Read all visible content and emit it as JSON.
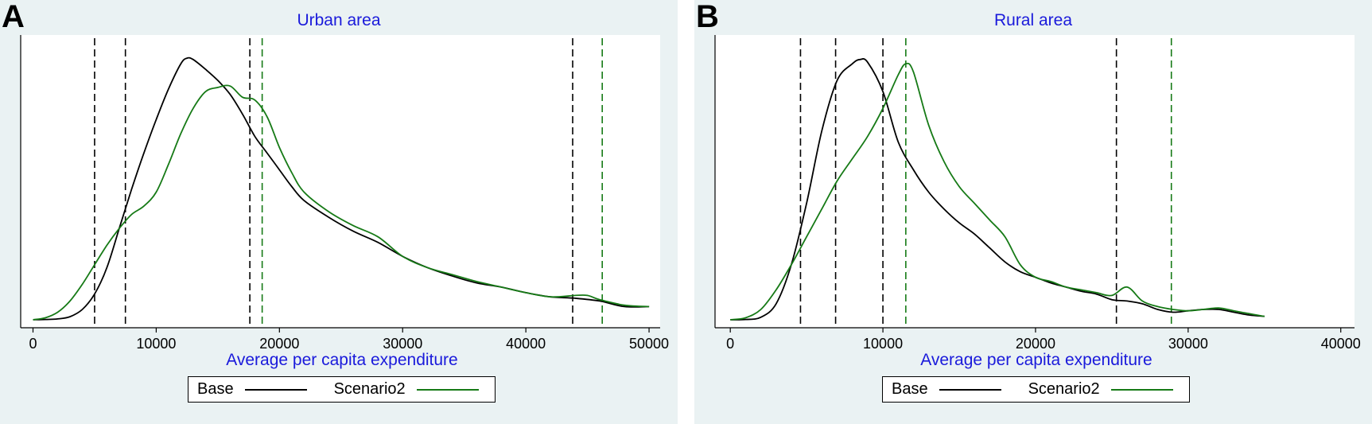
{
  "chart_data": [
    {
      "type": "line",
      "panel_label": "A",
      "title": "Urban area",
      "xlabel": "Average per capita expenditure",
      "ylabel": "",
      "xlim": [
        -1000,
        50900
      ],
      "ylim": [
        0,
        1
      ],
      "x_ticks": [
        0,
        10000,
        20000,
        30000,
        40000,
        50000
      ],
      "x_tick_labels": [
        "0",
        "10000",
        "20000",
        "30000",
        "40000",
        "50000"
      ],
      "y_ticks_shown": false,
      "grid": false,
      "legend_position": "bottom",
      "series": [
        {
          "name": "Base",
          "color": "#000000",
          "x": [
            0,
            1000,
            2000,
            3000,
            4000,
            5000,
            6000,
            7000,
            8000,
            9000,
            10000,
            11000,
            12000,
            12500,
            13000,
            14000,
            15000,
            16000,
            17000,
            18000,
            19000,
            20000,
            21000,
            22000,
            24000,
            26000,
            28000,
            30000,
            32000,
            34000,
            36000,
            38000,
            40000,
            42000,
            44000,
            46000,
            48000,
            50000
          ],
          "y": [
            0.003,
            0.004,
            0.006,
            0.014,
            0.04,
            0.095,
            0.19,
            0.33,
            0.47,
            0.6,
            0.72,
            0.83,
            0.92,
            0.94,
            0.935,
            0.9,
            0.86,
            0.81,
            0.74,
            0.66,
            0.6,
            0.54,
            0.48,
            0.43,
            0.37,
            0.32,
            0.28,
            0.23,
            0.19,
            0.16,
            0.135,
            0.12,
            0.1,
            0.085,
            0.08,
            0.07,
            0.05,
            0.05
          ]
        },
        {
          "name": "Scenario2",
          "color": "#167a16",
          "x": [
            0,
            1000,
            2000,
            3000,
            4000,
            5000,
            6000,
            7000,
            8000,
            9000,
            10000,
            11000,
            12000,
            13000,
            14000,
            15000,
            16000,
            17000,
            18000,
            19000,
            20000,
            21000,
            22000,
            24000,
            26000,
            28000,
            30000,
            32000,
            34000,
            36000,
            38000,
            40000,
            42000,
            44000,
            45000,
            46000,
            48000,
            50000
          ],
          "y": [
            0.003,
            0.01,
            0.03,
            0.07,
            0.13,
            0.2,
            0.27,
            0.33,
            0.38,
            0.41,
            0.46,
            0.56,
            0.67,
            0.76,
            0.82,
            0.835,
            0.84,
            0.8,
            0.79,
            0.73,
            0.62,
            0.53,
            0.46,
            0.39,
            0.34,
            0.3,
            0.23,
            0.19,
            0.165,
            0.14,
            0.12,
            0.1,
            0.085,
            0.09,
            0.09,
            0.075,
            0.055,
            0.05
          ]
        }
      ],
      "vlines": [
        {
          "x": 5000,
          "series": "Base",
          "color": "#000000"
        },
        {
          "x": 7500,
          "series": "Base",
          "color": "#000000"
        },
        {
          "x": 17600,
          "series": "Base",
          "color": "#000000"
        },
        {
          "x": 18600,
          "series": "Scenario2",
          "color": "#167a16"
        },
        {
          "x": 43800,
          "series": "Base",
          "color": "#000000"
        },
        {
          "x": 46200,
          "series": "Scenario2",
          "color": "#167a16"
        }
      ]
    },
    {
      "type": "line",
      "panel_label": "B",
      "title": "Rural area",
      "xlabel": "Average per capita expenditure",
      "ylabel": "",
      "xlim": [
        -1000,
        40900
      ],
      "ylim": [
        0,
        1
      ],
      "x_ticks": [
        0,
        10000,
        20000,
        30000,
        40000
      ],
      "x_tick_labels": [
        "0",
        "10000",
        "20000",
        "30000",
        "40000"
      ],
      "y_ticks_shown": false,
      "grid": false,
      "legend_position": "bottom",
      "series": [
        {
          "name": "Base",
          "color": "#000000",
          "x": [
            0,
            1000,
            2000,
            3000,
            4000,
            5000,
            6000,
            7000,
            8000,
            8500,
            9000,
            10000,
            11000,
            12000,
            13000,
            14000,
            15000,
            16000,
            17000,
            18000,
            19000,
            20000,
            21000,
            22000,
            23000,
            24000,
            25000,
            26000,
            27000,
            28000,
            29000,
            30000,
            31000,
            32000,
            33000,
            34000,
            35000
          ],
          "y": [
            0.003,
            0.004,
            0.012,
            0.06,
            0.2,
            0.42,
            0.68,
            0.86,
            0.92,
            0.935,
            0.925,
            0.82,
            0.64,
            0.54,
            0.46,
            0.4,
            0.35,
            0.31,
            0.26,
            0.21,
            0.175,
            0.155,
            0.135,
            0.12,
            0.105,
            0.095,
            0.075,
            0.07,
            0.06,
            0.04,
            0.03,
            0.035,
            0.04,
            0.04,
            0.03,
            0.02,
            0.015
          ]
        },
        {
          "name": "Scenario2",
          "color": "#167a16",
          "x": [
            0,
            1000,
            2000,
            3000,
            4000,
            5000,
            6000,
            7000,
            8000,
            9000,
            10000,
            11000,
            11500,
            12000,
            13000,
            14000,
            15000,
            16000,
            17000,
            18000,
            19000,
            20000,
            21000,
            22000,
            23000,
            24000,
            25000,
            26000,
            27000,
            28000,
            29000,
            30000,
            31000,
            32000,
            33000,
            34000,
            35000
          ],
          "y": [
            0.003,
            0.01,
            0.04,
            0.11,
            0.2,
            0.3,
            0.4,
            0.5,
            0.58,
            0.66,
            0.76,
            0.88,
            0.92,
            0.89,
            0.7,
            0.57,
            0.48,
            0.42,
            0.36,
            0.3,
            0.2,
            0.155,
            0.14,
            0.12,
            0.11,
            0.1,
            0.09,
            0.12,
            0.07,
            0.05,
            0.04,
            0.035,
            0.04,
            0.045,
            0.035,
            0.025,
            0.015
          ]
        }
      ],
      "vlines": [
        {
          "x": 4600,
          "series": "Base",
          "color": "#000000"
        },
        {
          "x": 6900,
          "series": "Base",
          "color": "#000000"
        },
        {
          "x": 10000,
          "series": "Base",
          "color": "#000000"
        },
        {
          "x": 11500,
          "series": "Scenario2",
          "color": "#167a16"
        },
        {
          "x": 25300,
          "series": "Base",
          "color": "#000000"
        },
        {
          "x": 28900,
          "series": "Scenario2",
          "color": "#167a16"
        }
      ]
    }
  ]
}
